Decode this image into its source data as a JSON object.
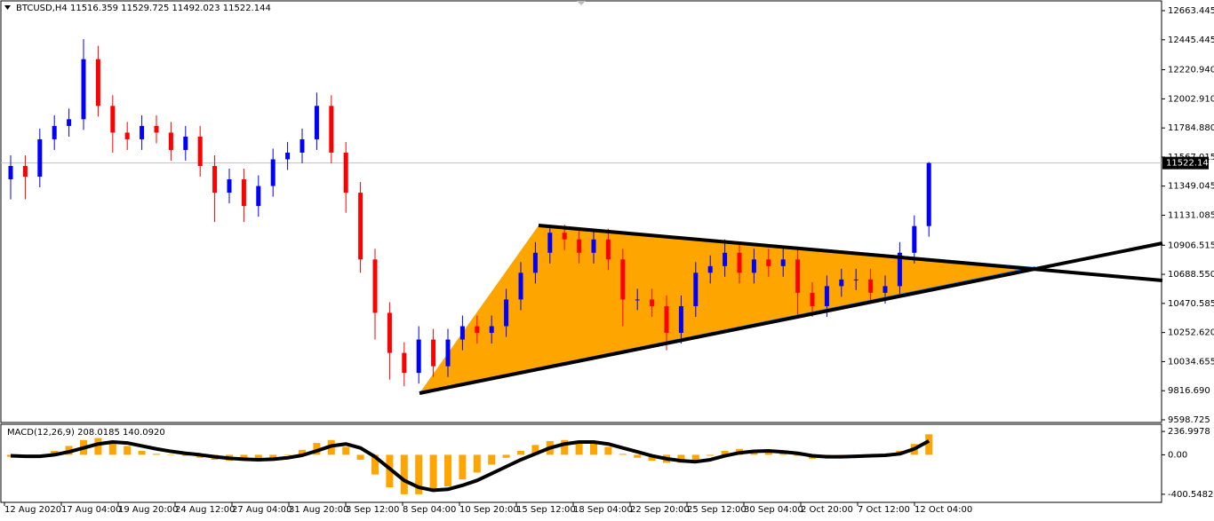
{
  "chart_data": [
    {
      "type": "candlestick",
      "title": "BTCUSD,H4  11516.359 11529.725 11492.023 11522.144",
      "open": [
        11400,
        11500,
        11420,
        11700,
        11800,
        11850,
        12300,
        11950,
        11750,
        11700,
        11800,
        11750,
        11620,
        11720,
        11500,
        11300,
        11400,
        11200,
        11350,
        11550,
        11600,
        11700,
        11950,
        11600,
        11300,
        10800,
        10400,
        10100,
        9950,
        10200,
        10000,
        10200,
        10300,
        10250,
        10300,
        10500,
        10700,
        10850,
        11000,
        10950,
        10850,
        10950,
        10800,
        10500,
        10500,
        10450,
        10250,
        10450,
        10700,
        10750,
        10850,
        10700,
        10800,
        10750,
        10800,
        10550,
        10450,
        10600,
        10650,
        10650,
        10550,
        10600,
        10850,
        11050
      ],
      "high": [
        11580,
        11580,
        11780,
        11880,
        11930,
        12450,
        12400,
        12030,
        11830,
        11880,
        11880,
        11830,
        11800,
        11800,
        11580,
        11480,
        11480,
        11430,
        11630,
        11680,
        11780,
        12050,
        12030,
        11680,
        11380,
        10880,
        10480,
        10180,
        10300,
        10280,
        10280,
        10380,
        10380,
        10380,
        10580,
        10780,
        10930,
        11060,
        11060,
        11030,
        11030,
        11030,
        10880,
        10580,
        10580,
        10530,
        10530,
        10780,
        10830,
        10950,
        10930,
        10880,
        10880,
        10880,
        10880,
        10630,
        10680,
        10730,
        10730,
        10730,
        10680,
        10930,
        11130,
        11529.725
      ],
      "low": [
        11250,
        11250,
        11340,
        11620,
        11720,
        11770,
        11870,
        11600,
        11620,
        11620,
        11670,
        11540,
        11540,
        11420,
        11080,
        11220,
        11080,
        11120,
        11270,
        11470,
        11520,
        11620,
        11520,
        11150,
        10700,
        10200,
        9900,
        9850,
        9870,
        9920,
        9920,
        10120,
        10170,
        10170,
        10220,
        10420,
        10620,
        10770,
        10870,
        10770,
        10770,
        10720,
        10300,
        10420,
        10370,
        10120,
        10170,
        10370,
        10620,
        10670,
        10620,
        10620,
        10670,
        10670,
        10380,
        10370,
        10370,
        10520,
        10570,
        10470,
        10470,
        10520,
        10770,
        10970
      ],
      "close": [
        11500,
        11420,
        11700,
        11800,
        11850,
        12300,
        11950,
        11750,
        11700,
        11800,
        11750,
        11620,
        11720,
        11500,
        11300,
        11400,
        11200,
        11350,
        11550,
        11600,
        11700,
        11950,
        11600,
        11300,
        10800,
        10400,
        10100,
        9950,
        10200,
        10000,
        10200,
        10300,
        10250,
        10300,
        10500,
        10700,
        10850,
        11000,
        10950,
        10850,
        10950,
        10800,
        10500,
        10500,
        10450,
        10250,
        10450,
        10700,
        10750,
        10850,
        10700,
        10800,
        10750,
        10800,
        10550,
        10450,
        10600,
        10650,
        10650,
        10550,
        10600,
        10850,
        11050,
        11522.144
      ],
      "up_color": "#0000ff",
      "down_color": "#ff0000",
      "current_price": 11522.144,
      "ylim": [
        9578.8,
        12729.9
      ],
      "yticks": [
        12663.445,
        12445.445,
        {
          "value": 12220.94,
          "label": "12220.940"
        },
        {
          "value": 12002.91,
          "label": "12002.910"
        },
        {
          "value": 11784.88,
          "label": "11784.880"
        },
        11567.015,
        11349.045,
        11131.085,
        10906.515,
        {
          "value": 10688.55,
          "label": "10688.550"
        },
        10470.585,
        {
          "value": 10252.62,
          "label": "10252.620"
        },
        10034.655,
        {
          "value": 9816.69,
          "label": "9816.690"
        },
        9598.725
      ]
    },
    {
      "type": "macd",
      "title": "MACD(12,26,9) 208.0185 140.0920",
      "histogram": [
        -20,
        -30,
        -10,
        40,
        90,
        150,
        170,
        140,
        90,
        40,
        10,
        0,
        -10,
        -30,
        -50,
        -60,
        -60,
        -50,
        -30,
        0,
        50,
        120,
        150,
        80,
        -50,
        -200,
        -330,
        -400,
        -400,
        -370,
        -320,
        -250,
        -180,
        -100,
        -30,
        40,
        100,
        140,
        150,
        140,
        120,
        80,
        10,
        -30,
        -60,
        -80,
        -80,
        -60,
        -10,
        40,
        60,
        50,
        40,
        20,
        -10,
        -40,
        -30,
        -10,
        0,
        -10,
        0,
        40,
        110,
        208.0185
      ],
      "signal": [
        -10,
        -15,
        -15,
        0,
        30,
        70,
        110,
        130,
        120,
        90,
        60,
        35,
        15,
        0,
        -20,
        -35,
        -45,
        -50,
        -45,
        -30,
        -5,
        40,
        90,
        110,
        70,
        -20,
        -140,
        -260,
        -330,
        -360,
        -350,
        -310,
        -260,
        -190,
        -120,
        -50,
        10,
        70,
        110,
        130,
        130,
        110,
        70,
        30,
        -10,
        -40,
        -60,
        -70,
        -50,
        -10,
        20,
        35,
        40,
        30,
        15,
        -10,
        -20,
        -20,
        -15,
        -10,
        -5,
        10,
        60,
        140.092
      ],
      "histogram_color": "#ffa500",
      "signal_color": "#000000",
      "ylim": [
        -482.5,
        310
      ],
      "yticks": [
        236.9978,
        {
          "value": 0,
          "label": "0.00"
        },
        -400.5482
      ],
      "x_labels": [
        "12 Aug 2020",
        "17 Aug 04:00",
        "19 Aug 20:00",
        "24 Aug 12:00",
        "27 Aug 04:00",
        "31 Aug 20:00",
        "3 Sep 12:00",
        "8 Sep 04:00",
        "10 Sep 20:00",
        "15 Sep 12:00",
        "18 Sep 04:00",
        "22 Sep 20:00",
        "25 Sep 12:00",
        "30 Sep 04:00",
        "2 Oct 20:00",
        "7 Oct 12:00",
        "12 Oct 04:00"
      ]
    }
  ]
}
